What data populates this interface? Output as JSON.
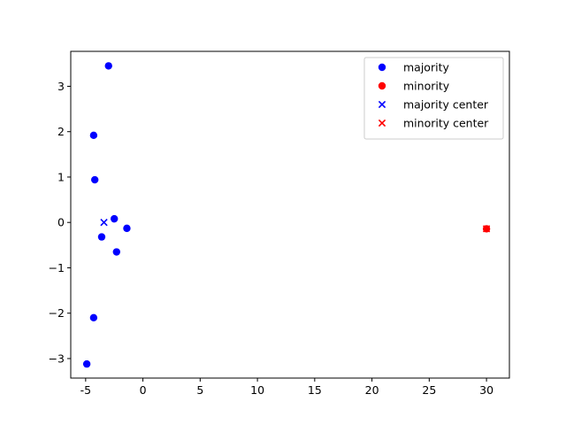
{
  "chart_data": {
    "type": "scatter",
    "title": "",
    "xlabel": "",
    "ylabel": "",
    "xlim": [
      -6.3,
      32.0
    ],
    "ylim": [
      -3.43,
      3.77
    ],
    "x_ticks": [
      -5,
      0,
      5,
      10,
      15,
      20,
      25,
      30
    ],
    "y_ticks": [
      -3,
      -2,
      -1,
      0,
      1,
      2,
      3
    ],
    "grid": false,
    "legend_position": "top-right",
    "series": [
      {
        "name": "majority",
        "marker": "circle",
        "color": "#0000ff",
        "points": [
          {
            "x": -3.0,
            "y": 3.45
          },
          {
            "x": -4.3,
            "y": 1.92
          },
          {
            "x": -4.2,
            "y": 0.94
          },
          {
            "x": -2.5,
            "y": 0.08
          },
          {
            "x": -1.4,
            "y": -0.13
          },
          {
            "x": -3.6,
            "y": -0.32
          },
          {
            "x": -2.3,
            "y": -0.65
          },
          {
            "x": -4.3,
            "y": -2.1
          },
          {
            "x": -4.9,
            "y": -3.12
          }
        ]
      },
      {
        "name": "minority",
        "marker": "circle",
        "color": "#ff0000",
        "points": [
          {
            "x": 30.0,
            "y": -0.14
          }
        ]
      },
      {
        "name": "majority center",
        "marker": "x",
        "color": "#0000ff",
        "points": [
          {
            "x": -3.4,
            "y": 0.0
          }
        ]
      },
      {
        "name": "minority center",
        "marker": "x",
        "color": "#ff0000",
        "points": [
          {
            "x": 30.0,
            "y": -0.14
          }
        ]
      }
    ]
  }
}
